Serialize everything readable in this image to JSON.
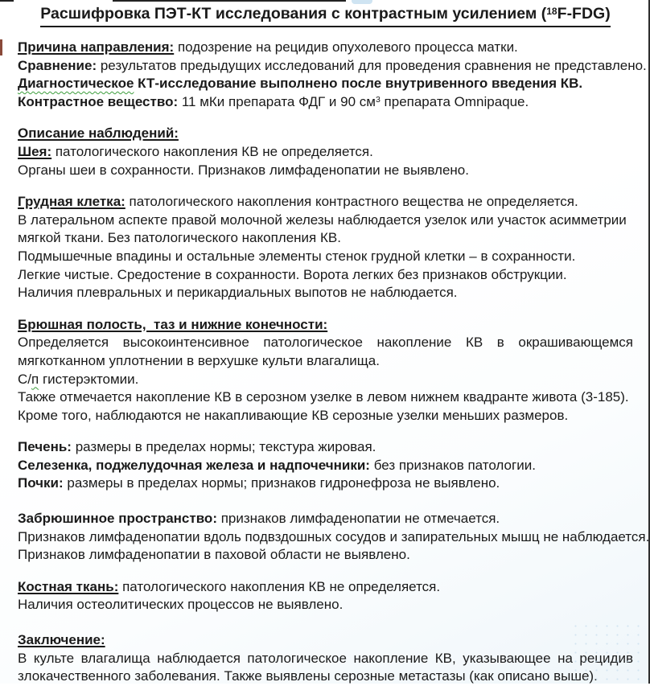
{
  "page": {
    "text_color": "#1a1a1a",
    "grammar_squiggle_color": "#3d9e3d",
    "right_edge_line_color": "#2f2f2f",
    "left_red_mark_color": "#8a4a3a",
    "background_tint": "#eff6fa"
  },
  "document": {
    "title": {
      "runs": [
        {
          "t": "Расшифровка ПЭТ-КТ исследования с контрастным усилением (",
          "b": true
        },
        {
          "t": "18",
          "b": true,
          "sup": true
        },
        {
          "t": "F-FDG)",
          "b": true
        }
      ]
    },
    "blocks": [
      {
        "name": "referral-reason-line",
        "runs": [
          {
            "t": "Причина направления:",
            "b": true,
            "u": true
          },
          {
            "t": " подозрение на рецидив опухолевого процесса матки."
          }
        ]
      },
      {
        "name": "comparison-line",
        "runs": [
          {
            "t": "Сравнение:",
            "b": true
          },
          {
            "t": " результатов предыдущих исследований для проведения сравнения не представлено."
          }
        ]
      },
      {
        "name": "ct-procedure-note-line",
        "runs": [
          {
            "t": "Диагностическое",
            "b": true,
            "wavy": true
          },
          {
            "t": " КТ-исследование выполнено после внутривенного введения КВ.",
            "b": true
          }
        ]
      },
      {
        "name": "contrast-agent-line",
        "runs": [
          {
            "t": "Контрастное вещество:",
            "b": true
          },
          {
            "t": " 11 мКи препарата ФДГ и 90 см"
          },
          {
            "t": "3",
            "sup": true
          },
          {
            "t": " препарата Omnipaque."
          }
        ]
      },
      {
        "spacer": true
      },
      {
        "name": "findings-heading",
        "runs": [
          {
            "t": "Описание наблюдений:",
            "b": true,
            "u": true
          }
        ]
      },
      {
        "name": "neck-line",
        "runs": [
          {
            "t": "Шея:",
            "b": true,
            "u": true
          },
          {
            "t": " патологического накопления КВ не определяется."
          }
        ]
      },
      {
        "name": "neck-detail-line",
        "runs": [
          {
            "t": "Органы шеи в сохранности. Признаков лимфаденопатии не выявлено."
          }
        ]
      },
      {
        "spacer": true
      },
      {
        "name": "chest-line",
        "runs": [
          {
            "t": "Грудная клетка:",
            "b": true,
            "u": true
          },
          {
            "t": " патологического накопления контрастного вещества не определяется."
          }
        ]
      },
      {
        "name": "chest-detail-line-1",
        "runs": [
          {
            "t": "В латеральном аспекте правой молочной железы наблюдается узелок или участок асимметрии"
          }
        ]
      },
      {
        "name": "chest-detail-line-2",
        "runs": [
          {
            "t": "мягкой ткани. Без патологического накопления КВ."
          }
        ]
      },
      {
        "name": "chest-detail-line-3",
        "runs": [
          {
            "t": "Подмышечные впадины и остальные элементы стенок грудной клетки – в сохранности."
          }
        ]
      },
      {
        "name": "chest-detail-line-4",
        "runs": [
          {
            "t": "Легкие чистые. Средостение в сохранности. Ворота легких без признаков обструкции."
          }
        ]
      },
      {
        "name": "chest-detail-line-5",
        "runs": [
          {
            "t": "Наличия плевральных и перикардиальных выпотов не наблюдается."
          }
        ]
      },
      {
        "spacer": true
      },
      {
        "name": "abdomen-heading",
        "runs": [
          {
            "t": "Брюшная полость,  таз и нижние конечности:",
            "b": true,
            "u": true
          }
        ]
      },
      {
        "name": "abdomen-finding-line-1a",
        "stretch": true,
        "runs": [
          {
            "t": "Определяется высокоинтенсивное патологическое накопление КВ в окрашивающемся"
          }
        ]
      },
      {
        "name": "abdomen-finding-line-1b",
        "runs": [
          {
            "t": "мягкотканном уплотнении в верхушке культи влагалища."
          }
        ]
      },
      {
        "name": "abdomen-finding-line-2",
        "runs": [
          {
            "t": "С/"
          },
          {
            "t": "п",
            "wavy": true
          },
          {
            "t": " гистерэктомии."
          }
        ]
      },
      {
        "name": "abdomen-finding-line-3",
        "runs": [
          {
            "t": "Также отмечается накопление КВ в серозном узелке в левом нижнем квадранте живота (3-185)."
          }
        ]
      },
      {
        "name": "abdomen-finding-line-4",
        "runs": [
          {
            "t": "Кроме того, наблюдаются не накапливающие КВ серозные узелки меньших размеров."
          }
        ]
      },
      {
        "spacer": true
      },
      {
        "name": "liver-line",
        "runs": [
          {
            "t": "Печень:",
            "b": true
          },
          {
            "t": " размеры в пределах нормы; текстура жировая."
          }
        ]
      },
      {
        "name": "spleen-pancreas-adrenals-line",
        "runs": [
          {
            "t": "Селезенка, поджелудочная железа и надпочечники:",
            "b": true
          },
          {
            "t": " без признаков патологии."
          }
        ]
      },
      {
        "name": "kidneys-line",
        "runs": [
          {
            "t": "Почки:",
            "b": true
          },
          {
            "t": " размеры в пределах нормы; признаков гидронефроза не выявлено."
          }
        ]
      },
      {
        "spacer": true,
        "size": "m"
      },
      {
        "name": "retroperitoneum-line",
        "runs": [
          {
            "t": "Забрюшинное пространство:",
            "b": true
          },
          {
            "t": " признаков лимфаденопатии не отмечается."
          }
        ]
      },
      {
        "name": "retroperitoneum-detail-line-1",
        "runs": [
          {
            "t": "Признаков лимфаденопатии вдоль подвздошных сосудов и запирательных мышц не наблюдается."
          }
        ]
      },
      {
        "name": "retroperitoneum-detail-line-2",
        "runs": [
          {
            "t": "Признаков лимфаденопатии в паховой области не выявлено."
          }
        ]
      },
      {
        "spacer": true
      },
      {
        "name": "bone-line",
        "runs": [
          {
            "t": "Костная ткань:",
            "b": true,
            "u": true
          },
          {
            "t": " патологического накопления КВ не определяется."
          }
        ]
      },
      {
        "name": "bone-detail-line",
        "runs": [
          {
            "t": "Наличия остеолитических процессов не выявлено."
          }
        ]
      },
      {
        "spacer": true,
        "size": "m"
      },
      {
        "name": "conclusion-heading",
        "runs": [
          {
            "t": "Заключение:",
            "b": true,
            "u": true
          }
        ]
      },
      {
        "name": "conclusion-line-1a",
        "stretch": true,
        "runs": [
          {
            "t": "В культе влагалища наблюдается патологическое накопление КВ, указывающее на рецидив"
          }
        ]
      },
      {
        "name": "conclusion-line-1b",
        "runs": [
          {
            "t": "злокачественного заболевания. Также выявлены серозные метастазы (как описано выше)."
          }
        ]
      }
    ]
  }
}
